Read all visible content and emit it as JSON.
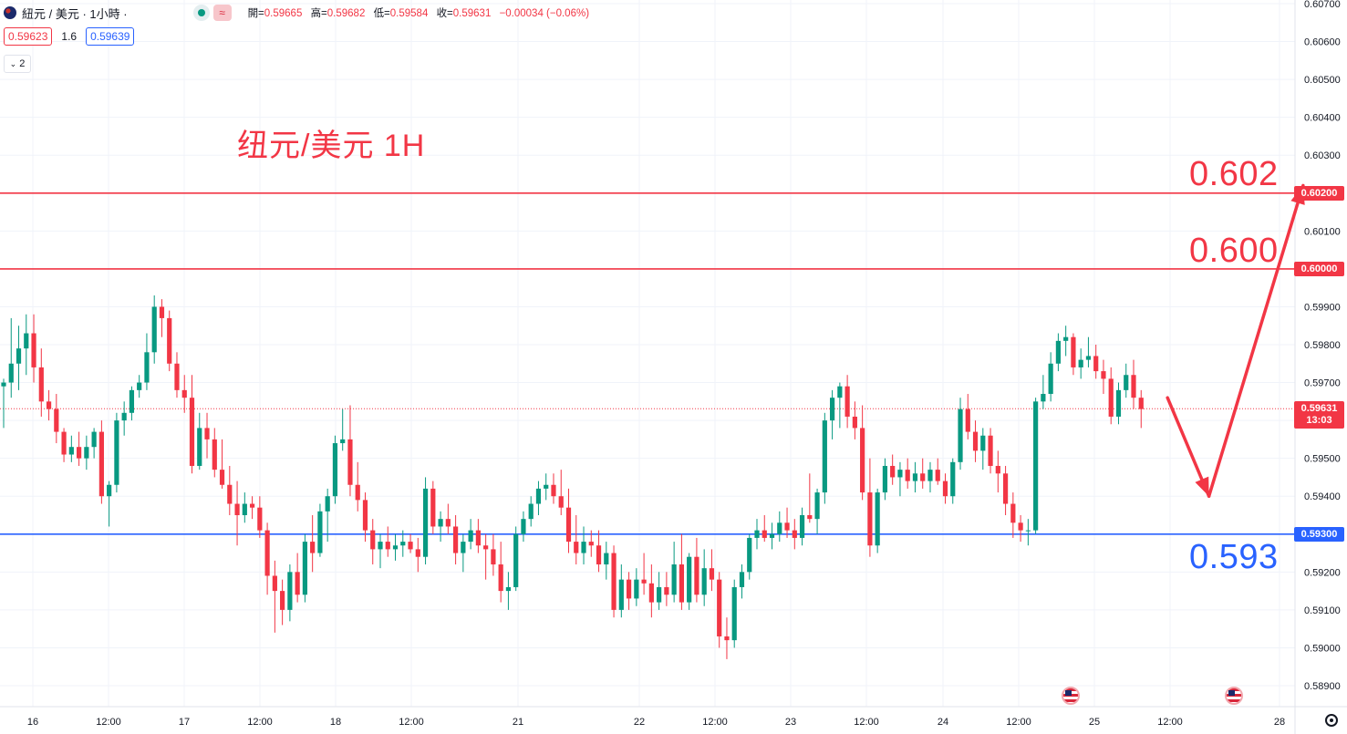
{
  "header": {
    "symbol": "紐元 / 美元 · 1小時 ·",
    "ohlc": {
      "open_label": "開=",
      "open": "0.59665",
      "high_label": "高=",
      "high": "0.59682",
      "low_label": "低=",
      "low": "0.59584",
      "close_label": "收=",
      "close": "0.59631",
      "change": "−0.00034 (−0.06%)"
    },
    "wave_icon": "≈"
  },
  "quote": {
    "bid": "0.59623",
    "spread": "1.6",
    "ask": "0.59639"
  },
  "indicator_toggle": {
    "count": "2",
    "icon": "chevron-down"
  },
  "annotation_title": "纽元/美元 1H",
  "levels": [
    {
      "label": "0.602",
      "price": 0.602,
      "tag": "0.60200",
      "color": "#f23645"
    },
    {
      "label": "0.600",
      "price": 0.6,
      "tag": "0.60000",
      "color": "#f23645"
    },
    {
      "label": "0.593",
      "price": 0.593,
      "tag": "0.59300",
      "color": "#2962ff"
    }
  ],
  "current_price": {
    "price": "0.59631",
    "countdown": "13:03",
    "value": 0.59631
  },
  "colors": {
    "up": "#089981",
    "down": "#f23645",
    "grid": "#f0f3fa",
    "support": "#2962ff",
    "resistance": "#f23645"
  },
  "chart_data": {
    "type": "candlestick",
    "ylim": [
      0.5888,
      0.6071
    ],
    "y_ticks": [
      "0.60700",
      "0.60600",
      "0.60500",
      "0.60400",
      "0.60300",
      "0.60200",
      "0.60100",
      "0.60000",
      "0.59900",
      "0.59800",
      "0.59700",
      "0.59600",
      "0.59500",
      "0.59400",
      "0.59300",
      "0.59200",
      "0.59100",
      "0.59000",
      "0.58900"
    ],
    "x_ticks": [
      "16",
      "12:00",
      "17",
      "12:00",
      "18",
      "12:00",
      "21",
      "22",
      "12:00",
      "23",
      "12:00",
      "24",
      "12:00",
      "25",
      "12:00",
      "28"
    ],
    "candles": [
      [
        0.5969,
        0.5971,
        0.5958,
        0.597
      ],
      [
        0.597,
        0.5987,
        0.5966,
        0.5975
      ],
      [
        0.5975,
        0.5985,
        0.5968,
        0.5979
      ],
      [
        0.5979,
        0.5988,
        0.5972,
        0.5983
      ],
      [
        0.5983,
        0.5988,
        0.597,
        0.5974
      ],
      [
        0.5974,
        0.5979,
        0.5961,
        0.5965
      ],
      [
        0.5965,
        0.5968,
        0.596,
        0.5963
      ],
      [
        0.5963,
        0.5967,
        0.5954,
        0.5957
      ],
      [
        0.5957,
        0.5958,
        0.5949,
        0.5951
      ],
      [
        0.5951,
        0.5956,
        0.5949,
        0.5953
      ],
      [
        0.5953,
        0.5957,
        0.5948,
        0.595
      ],
      [
        0.595,
        0.5956,
        0.5947,
        0.5953
      ],
      [
        0.5953,
        0.5958,
        0.595,
        0.5957
      ],
      [
        0.5957,
        0.596,
        0.5938,
        0.594
      ],
      [
        0.594,
        0.5944,
        0.5932,
        0.5943
      ],
      [
        0.5943,
        0.5962,
        0.5941,
        0.596
      ],
      [
        0.596,
        0.5965,
        0.5956,
        0.5962
      ],
      [
        0.5962,
        0.5969,
        0.596,
        0.5968
      ],
      [
        0.5968,
        0.5972,
        0.5966,
        0.597
      ],
      [
        0.597,
        0.5983,
        0.5968,
        0.5978
      ],
      [
        0.5978,
        0.5993,
        0.5975,
        0.599
      ],
      [
        0.599,
        0.5992,
        0.5982,
        0.5987
      ],
      [
        0.5987,
        0.5989,
        0.5973,
        0.5975
      ],
      [
        0.5975,
        0.5978,
        0.5966,
        0.5968
      ],
      [
        0.5968,
        0.5972,
        0.5962,
        0.5966
      ],
      [
        0.5966,
        0.5972,
        0.5946,
        0.5948
      ],
      [
        0.5948,
        0.5962,
        0.5947,
        0.5958
      ],
      [
        0.5958,
        0.5962,
        0.595,
        0.5955
      ],
      [
        0.5955,
        0.5958,
        0.5945,
        0.5947
      ],
      [
        0.5947,
        0.5955,
        0.5942,
        0.5943
      ],
      [
        0.5943,
        0.5948,
        0.5935,
        0.5938
      ],
      [
        0.5938,
        0.5944,
        0.5927,
        0.5935
      ],
      [
        0.5935,
        0.5941,
        0.5933,
        0.5938
      ],
      [
        0.5938,
        0.594,
        0.5934,
        0.5937
      ],
      [
        0.5937,
        0.594,
        0.5929,
        0.5931
      ],
      [
        0.5931,
        0.5933,
        0.5914,
        0.5919
      ],
      [
        0.5919,
        0.5923,
        0.5904,
        0.5915
      ],
      [
        0.5915,
        0.5918,
        0.5906,
        0.591
      ],
      [
        0.591,
        0.5922,
        0.5907,
        0.592
      ],
      [
        0.592,
        0.5925,
        0.5912,
        0.5914
      ],
      [
        0.5914,
        0.593,
        0.5912,
        0.5928
      ],
      [
        0.5928,
        0.5935,
        0.592,
        0.5925
      ],
      [
        0.5925,
        0.5938,
        0.5924,
        0.5936
      ],
      [
        0.5936,
        0.5942,
        0.5928,
        0.594
      ],
      [
        0.594,
        0.5956,
        0.5938,
        0.5954
      ],
      [
        0.5954,
        0.5963,
        0.5952,
        0.5955
      ],
      [
        0.5955,
        0.5964,
        0.594,
        0.5943
      ],
      [
        0.5943,
        0.5949,
        0.5936,
        0.5939
      ],
      [
        0.5939,
        0.5941,
        0.5928,
        0.5931
      ],
      [
        0.5931,
        0.5934,
        0.5922,
        0.5926
      ],
      [
        0.5926,
        0.593,
        0.5921,
        0.5928
      ],
      [
        0.5928,
        0.5932,
        0.5924,
        0.5926
      ],
      [
        0.5926,
        0.593,
        0.5923,
        0.5927
      ],
      [
        0.5927,
        0.5931,
        0.5924,
        0.5928
      ],
      [
        0.5928,
        0.593,
        0.5925,
        0.5926
      ],
      [
        0.5926,
        0.5929,
        0.592,
        0.5924
      ],
      [
        0.5924,
        0.5945,
        0.5922,
        0.5942
      ],
      [
        0.5942,
        0.5944,
        0.593,
        0.5932
      ],
      [
        0.5932,
        0.5936,
        0.5928,
        0.5934
      ],
      [
        0.5934,
        0.5938,
        0.593,
        0.5932
      ],
      [
        0.5932,
        0.5935,
        0.5922,
        0.5925
      ],
      [
        0.5925,
        0.593,
        0.592,
        0.5928
      ],
      [
        0.5928,
        0.5934,
        0.5926,
        0.5931
      ],
      [
        0.5931,
        0.5934,
        0.5925,
        0.5927
      ],
      [
        0.5927,
        0.593,
        0.5918,
        0.5926
      ],
      [
        0.5926,
        0.593,
        0.5919,
        0.5922
      ],
      [
        0.5922,
        0.5928,
        0.5912,
        0.5915
      ],
      [
        0.5915,
        0.592,
        0.591,
        0.5916
      ],
      [
        0.5916,
        0.5932,
        0.5915,
        0.593
      ],
      [
        0.593,
        0.5936,
        0.5928,
        0.5934
      ],
      [
        0.5934,
        0.594,
        0.5932,
        0.5938
      ],
      [
        0.5938,
        0.5944,
        0.5935,
        0.5942
      ],
      [
        0.5942,
        0.5946,
        0.5939,
        0.5943
      ],
      [
        0.5943,
        0.5946,
        0.5938,
        0.594
      ],
      [
        0.594,
        0.5947,
        0.5935,
        0.5937
      ],
      [
        0.5937,
        0.5942,
        0.5925,
        0.5928
      ],
      [
        0.5928,
        0.5935,
        0.5922,
        0.5925
      ],
      [
        0.5925,
        0.5932,
        0.5922,
        0.5928
      ],
      [
        0.5928,
        0.5931,
        0.5924,
        0.5927
      ],
      [
        0.5927,
        0.5931,
        0.592,
        0.5922
      ],
      [
        0.5922,
        0.5928,
        0.5918,
        0.5925
      ],
      [
        0.5925,
        0.5927,
        0.5908,
        0.591
      ],
      [
        0.591,
        0.5922,
        0.5908,
        0.5918
      ],
      [
        0.5918,
        0.592,
        0.591,
        0.5913
      ],
      [
        0.5913,
        0.5921,
        0.5911,
        0.5918
      ],
      [
        0.5918,
        0.5925,
        0.5914,
        0.5917
      ],
      [
        0.5917,
        0.5922,
        0.5908,
        0.5912
      ],
      [
        0.5912,
        0.592,
        0.591,
        0.5916
      ],
      [
        0.5916,
        0.592,
        0.5911,
        0.5914
      ],
      [
        0.5914,
        0.5928,
        0.5912,
        0.5922
      ],
      [
        0.5922,
        0.593,
        0.591,
        0.5912
      ],
      [
        0.5912,
        0.5925,
        0.591,
        0.5924
      ],
      [
        0.5924,
        0.5929,
        0.5912,
        0.5914
      ],
      [
        0.5914,
        0.5926,
        0.5911,
        0.5921
      ],
      [
        0.5921,
        0.5926,
        0.5915,
        0.5918
      ],
      [
        0.5918,
        0.592,
        0.59,
        0.5903
      ],
      [
        0.5903,
        0.5908,
        0.5897,
        0.5902
      ],
      [
        0.5902,
        0.5918,
        0.59,
        0.5916
      ],
      [
        0.5916,
        0.5922,
        0.5913,
        0.592
      ],
      [
        0.592,
        0.593,
        0.5918,
        0.5929
      ],
      [
        0.5929,
        0.5934,
        0.5926,
        0.5931
      ],
      [
        0.5931,
        0.5935,
        0.5928,
        0.5929
      ],
      [
        0.5929,
        0.5933,
        0.5926,
        0.593
      ],
      [
        0.593,
        0.5936,
        0.5928,
        0.5933
      ],
      [
        0.5933,
        0.5937,
        0.5929,
        0.5931
      ],
      [
        0.5931,
        0.5934,
        0.5926,
        0.5929
      ],
      [
        0.5929,
        0.5937,
        0.5927,
        0.5935
      ],
      [
        0.5935,
        0.5946,
        0.5933,
        0.5934
      ],
      [
        0.5934,
        0.5942,
        0.593,
        0.5941
      ],
      [
        0.5941,
        0.5962,
        0.5938,
        0.596
      ],
      [
        0.596,
        0.5968,
        0.5955,
        0.5966
      ],
      [
        0.5966,
        0.597,
        0.5958,
        0.5969
      ],
      [
        0.5969,
        0.5972,
        0.5958,
        0.5961
      ],
      [
        0.5961,
        0.5965,
        0.5955,
        0.5958
      ],
      [
        0.5958,
        0.5964,
        0.5939,
        0.5941
      ],
      [
        0.5941,
        0.595,
        0.5924,
        0.5927
      ],
      [
        0.5927,
        0.5942,
        0.5925,
        0.5941
      ],
      [
        0.5941,
        0.595,
        0.5939,
        0.5948
      ],
      [
        0.5948,
        0.5951,
        0.5943,
        0.5945
      ],
      [
        0.5945,
        0.5949,
        0.594,
        0.5947
      ],
      [
        0.5947,
        0.595,
        0.5942,
        0.5944
      ],
      [
        0.5944,
        0.5949,
        0.5941,
        0.5946
      ],
      [
        0.5946,
        0.595,
        0.5942,
        0.5944
      ],
      [
        0.5944,
        0.5949,
        0.5941,
        0.5947
      ],
      [
        0.5947,
        0.595,
        0.5943,
        0.5944
      ],
      [
        0.5944,
        0.5946,
        0.5938,
        0.594
      ],
      [
        0.594,
        0.595,
        0.5938,
        0.5949
      ],
      [
        0.5949,
        0.5966,
        0.5947,
        0.5963
      ],
      [
        0.5963,
        0.5967,
        0.5955,
        0.5957
      ],
      [
        0.5957,
        0.596,
        0.5949,
        0.5952
      ],
      [
        0.5952,
        0.5958,
        0.5947,
        0.5956
      ],
      [
        0.5956,
        0.5958,
        0.5946,
        0.5948
      ],
      [
        0.5948,
        0.5952,
        0.5941,
        0.5946
      ],
      [
        0.5946,
        0.5948,
        0.5935,
        0.5938
      ],
      [
        0.5938,
        0.5941,
        0.5929,
        0.5933
      ],
      [
        0.5933,
        0.5935,
        0.5928,
        0.5931
      ],
      [
        0.5931,
        0.5934,
        0.5927,
        0.5931
      ],
      [
        0.5931,
        0.5966,
        0.593,
        0.5965
      ],
      [
        0.5965,
        0.5972,
        0.5963,
        0.5967
      ],
      [
        0.5967,
        0.5978,
        0.5965,
        0.5975
      ],
      [
        0.5975,
        0.5983,
        0.5973,
        0.5981
      ],
      [
        0.5981,
        0.5985,
        0.5977,
        0.5982
      ],
      [
        0.5982,
        0.5983,
        0.5972,
        0.5974
      ],
      [
        0.5974,
        0.5979,
        0.5971,
        0.5976
      ],
      [
        0.5976,
        0.5982,
        0.5974,
        0.5977
      ],
      [
        0.5977,
        0.598,
        0.5971,
        0.5973
      ],
      [
        0.5973,
        0.5976,
        0.5967,
        0.5971
      ],
      [
        0.5971,
        0.5974,
        0.5959,
        0.5961
      ],
      [
        0.5961,
        0.597,
        0.5959,
        0.5968
      ],
      [
        0.5968,
        0.5975,
        0.5966,
        0.5972
      ],
      [
        0.5972,
        0.5976,
        0.5963,
        0.5966
      ],
      [
        0.5966,
        0.5968,
        0.5958,
        0.5963
      ]
    ],
    "projection": [
      {
        "time_index": 154.5,
        "price": 0.5966
      },
      {
        "time_index": 160.0,
        "price": 0.594
      },
      {
        "time_index": 172.5,
        "price": 0.6022
      }
    ]
  }
}
